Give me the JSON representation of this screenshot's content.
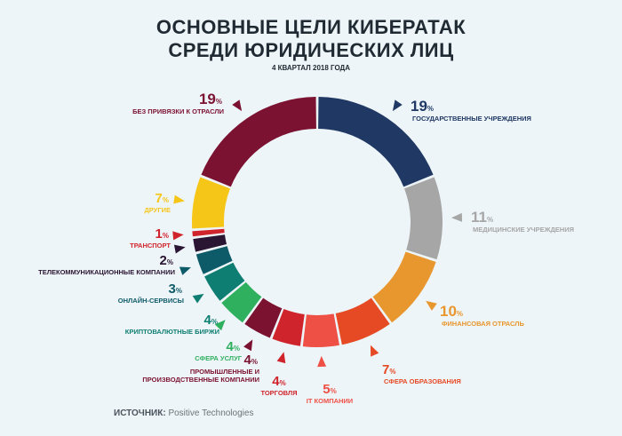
{
  "header": {
    "title_line1": "ОСНОВНЫЕ ЦЕЛИ КИБЕРАТАК",
    "title_line2": "СРЕДИ ЮРИДИЧЕСКИХ ЛИЦ",
    "subtitle": "4 КВАРТАЛ 2018 ГОДА"
  },
  "footer": {
    "source_label": "ИСТОЧНИК:",
    "source_value": "Positive Technologies"
  },
  "chart_data": {
    "type": "pie",
    "title": "ОСНОВНЫЕ ЦЕЛИ КИБЕРАТАК СРЕДИ ЮРИДИЧЕСКИХ ЛИЦ",
    "subtitle": "4 КВАРТАЛ 2018 ГОДА",
    "unit": "%",
    "slices": [
      {
        "lines": [
          "ГОСУДАРСТВЕННЫЕ УЧРЕЖДЕНИЯ"
        ],
        "value": 19,
        "color": "#1f3864"
      },
      {
        "lines": [
          "МЕДИЦИНСКИЕ УЧРЕЖДЕНИЯ"
        ],
        "value": 11,
        "color": "#a6a6a6"
      },
      {
        "lines": [
          "ФИНАНСОВАЯ ОТРАСЛЬ"
        ],
        "value": 10,
        "color": "#e8962e"
      },
      {
        "lines": [
          "СФЕРА ОБРАЗОВАНИЯ"
        ],
        "value": 7,
        "color": "#e64a25"
      },
      {
        "lines": [
          "IT КОМПАНИИ"
        ],
        "value": 5,
        "color": "#ee5046"
      },
      {
        "lines": [
          "ТОРГОВЛЯ"
        ],
        "value": 4,
        "color": "#d0242c"
      },
      {
        "lines": [
          "ПРОМЫШЛЕННЫЕ И",
          "ПРОИЗВОДСТВЕННЫЕ КОМПАНИИ"
        ],
        "value": 4,
        "color": "#7b1230"
      },
      {
        "lines": [
          "СФЕРА УСЛУГ"
        ],
        "value": 4,
        "color": "#2fb05f"
      },
      {
        "lines": [
          "КРИПТОВАЛЮТНЫЕ БИРЖИ"
        ],
        "value": 4,
        "color": "#0f7e72"
      },
      {
        "lines": [
          "ОНЛАЙН-СЕРВИСЫ"
        ],
        "value": 3,
        "color": "#0d5a68"
      },
      {
        "lines": [
          "ТЕЛЕКОММУНИКАЦИОННЫЕ КОМПАНИИ"
        ],
        "value": 2,
        "color": "#2a1533"
      },
      {
        "lines": [
          "ТРАНСПОРТ"
        ],
        "value": 1,
        "color": "#d0242c"
      },
      {
        "lines": [
          "ДРУГИЕ"
        ],
        "value": 7,
        "color": "#f5c518"
      },
      {
        "lines": [
          "БЕЗ ПРИВЯЗКИ К ОТРАСЛИ"
        ],
        "value": 19,
        "color": "#7b1232"
      }
    ]
  }
}
